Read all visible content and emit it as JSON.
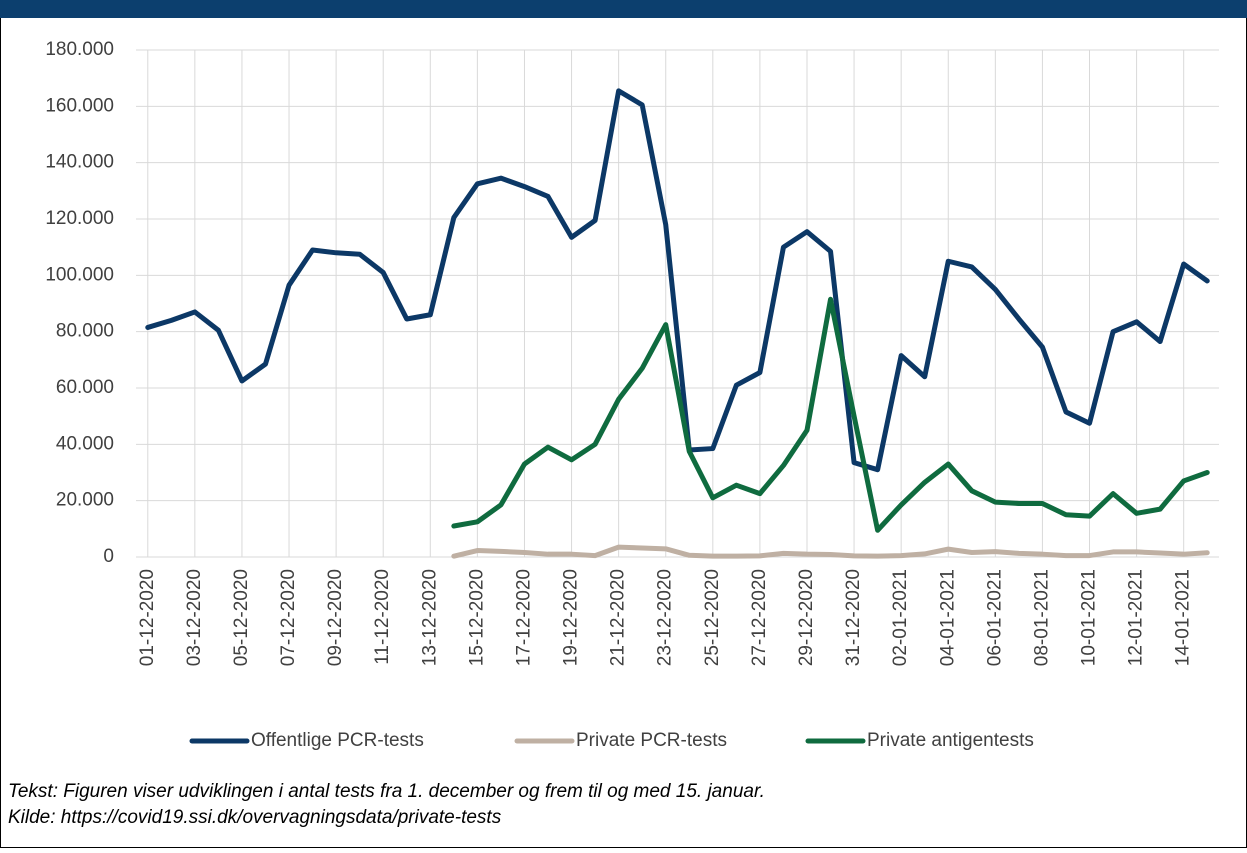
{
  "chart_data": {
    "type": "line",
    "categories": [
      "01-12-2020",
      null,
      "03-12-2020",
      null,
      "05-12-2020",
      null,
      "07-12-2020",
      null,
      "09-12-2020",
      null,
      "11-12-2020",
      null,
      "13-12-2020",
      null,
      "15-12-2020",
      null,
      "17-12-2020",
      null,
      "19-12-2020",
      null,
      "21-12-2020",
      null,
      "23-12-2020",
      null,
      "25-12-2020",
      null,
      "27-12-2020",
      null,
      "29-12-2020",
      null,
      "31-12-2020",
      null,
      "02-01-2021",
      null,
      "04-01-2021",
      null,
      "06-01-2021",
      null,
      "08-01-2021",
      null,
      "10-01-2021",
      null,
      "12-01-2021",
      null,
      "14-01-2021",
      null
    ],
    "series": [
      {
        "name": "Offentlige PCR-tests",
        "color": "#0c3866",
        "values": [
          81500,
          84000,
          87000,
          80500,
          62500,
          68500,
          96500,
          109000,
          108000,
          107500,
          101000,
          84500,
          86000,
          120500,
          132500,
          134500,
          131500,
          128000,
          113500,
          119500,
          165500,
          160500,
          118000,
          38000,
          38500,
          61000,
          65500,
          110000,
          115500,
          108500,
          33500,
          31000,
          71500,
          64000,
          105000,
          103000,
          95000,
          84500,
          74500,
          51500,
          47500,
          80000,
          83500,
          76500,
          104000,
          98000
        ]
      },
      {
        "name": "Private PCR-tests",
        "color": "#bfb0a3",
        "values": [
          null,
          null,
          null,
          null,
          null,
          null,
          null,
          null,
          null,
          null,
          null,
          null,
          null,
          300,
          2300,
          2000,
          1600,
          1000,
          1000,
          500,
          3500,
          3200,
          2900,
          600,
          300,
          300,
          400,
          1300,
          1000,
          900,
          400,
          300,
          500,
          1100,
          2800,
          1600,
          1900,
          1300,
          1000,
          500,
          500,
          1800,
          1800,
          1400,
          1000,
          1500
        ]
      },
      {
        "name": "Private antigentests",
        "color": "#0f6b3f",
        "values": [
          null,
          null,
          null,
          null,
          null,
          null,
          null,
          null,
          null,
          null,
          null,
          null,
          null,
          11000,
          12500,
          18500,
          33000,
          39000,
          34500,
          40000,
          56000,
          67000,
          82500,
          37500,
          21000,
          25500,
          22500,
          32500,
          45000,
          91500,
          50000,
          9500,
          18500,
          26500,
          33000,
          23500,
          19500,
          19000,
          19000,
          15000,
          14500,
          22500,
          15500,
          17000,
          27000,
          30000
        ]
      }
    ],
    "ylim": [
      0,
      180000
    ],
    "yticks": [
      0,
      {
        "value": 20000,
        "label": "20.000"
      },
      {
        "value": 40000,
        "label": "40.000"
      },
      {
        "value": 60000,
        "label": "60.000"
      },
      {
        "value": 80000,
        "label": "80.000"
      },
      {
        "value": 100000,
        "label": "100.000"
      },
      {
        "value": 120000,
        "label": "120.000"
      },
      {
        "value": 140000,
        "label": "140.000"
      },
      {
        "value": 160000,
        "label": "160.000"
      },
      {
        "value": 180000,
        "label": "180.000"
      }
    ],
    "grid": true,
    "legend": "bottom",
    "notes": [
      "Tekst: Figuren viser udviklingen i antal tests fra 1. december og frem til og med 15. januar.",
      "Kilde: https://covid19.ssi.dk/overvagningsdata/private-tests"
    ]
  }
}
